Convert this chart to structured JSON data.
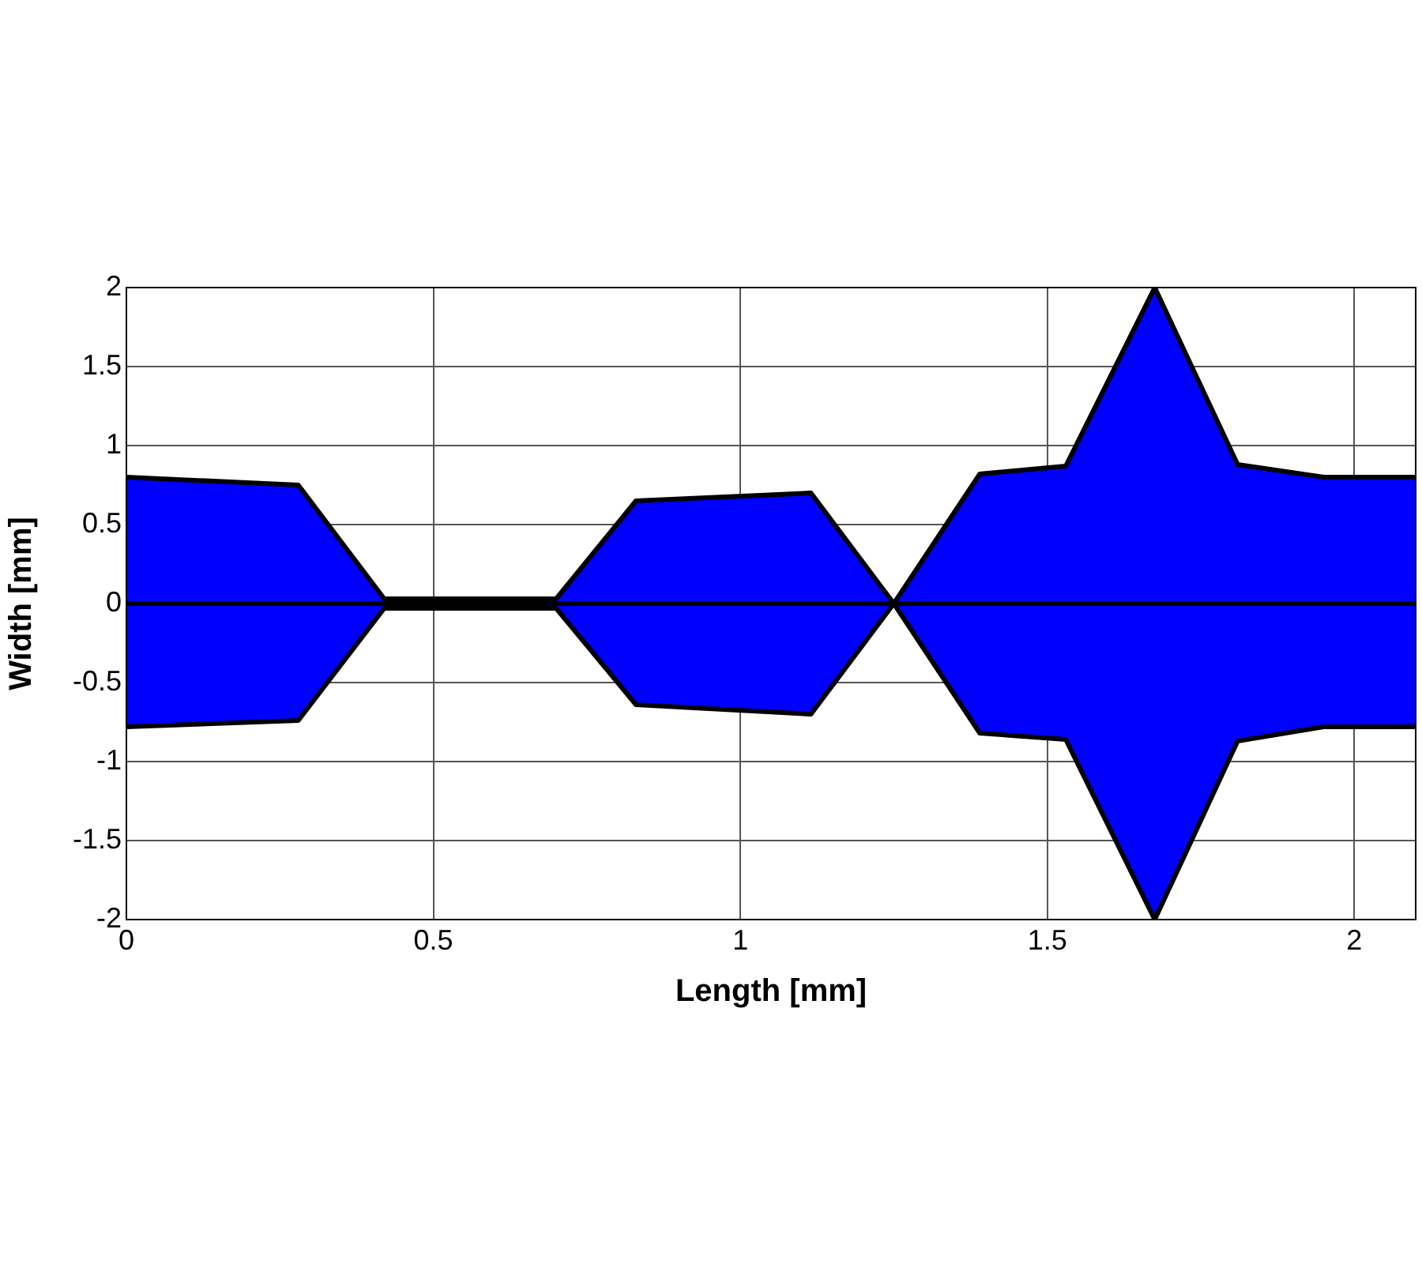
{
  "chart_data": {
    "type": "area",
    "xlabel": "Length [mm]",
    "ylabel": "Width [mm]",
    "x": [
      0,
      0.28,
      0.42,
      0.7,
      0.83,
      1.115,
      1.25,
      1.39,
      1.53,
      1.675,
      1.81,
      1.95,
      2.1
    ],
    "series": [
      {
        "color": "#0000ff",
        "values": [
          0.8,
          0.75,
          0.03,
          0.03,
          0.65,
          0.7,
          0,
          0.82,
          0.87,
          2.0,
          0.88,
          0.8,
          0.8
        ]
      },
      {
        "color": "#0000ff",
        "values": [
          -0.78,
          -0.74,
          -0.03,
          -0.03,
          -0.64,
          -0.7,
          0,
          -0.82,
          -0.86,
          -2.0,
          -0.87,
          -0.78,
          -0.78
        ]
      }
    ],
    "ref_lines": [
      {
        "axis": "y",
        "value": 0,
        "color": "#000000"
      }
    ],
    "xlim": [
      0,
      2.1
    ],
    "xticks": [
      0,
      0.5,
      1,
      1.5,
      2
    ],
    "ylim": [
      -2,
      2
    ],
    "yticks": [
      -2,
      -1.5,
      -1,
      -0.5,
      0,
      0.5,
      1,
      1.5,
      2
    ],
    "grid": true,
    "legend": false,
    "marker": "none",
    "line_style": "solid"
  }
}
